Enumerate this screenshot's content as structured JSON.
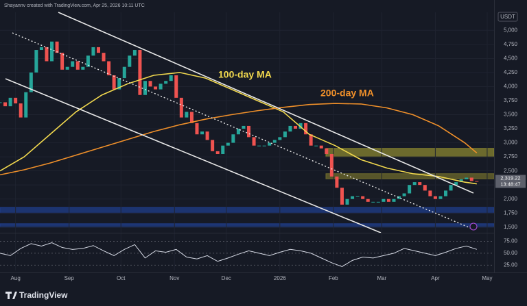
{
  "header": {
    "author_line": "Shayannv created with TradingView.com, Apr 25, 2026 10:11 UTC",
    "currency": "USDT"
  },
  "footer": {
    "brand": "TradingView"
  },
  "chart_data": [
    {
      "type": "candlestick",
      "up_color": "#26a69a",
      "down_color": "#ef5350",
      "grid": true,
      "x": [
        -9,
        -6,
        -3,
        0,
        3,
        6,
        9,
        12,
        15,
        18,
        21,
        24,
        27,
        30,
        33,
        36,
        39,
        42,
        45,
        48,
        51,
        54,
        57,
        60,
        63,
        66,
        69,
        72,
        75,
        78,
        81,
        84,
        87,
        90,
        93,
        96,
        99,
        102,
        105,
        108,
        111,
        114,
        117,
        120,
        123,
        126,
        129,
        132,
        135,
        138,
        141,
        144,
        147,
        150,
        153,
        156,
        159,
        162,
        165,
        168,
        171,
        174,
        177,
        180,
        183,
        186,
        189,
        192,
        195,
        198,
        201,
        204,
        207,
        210,
        213,
        216,
        219,
        222,
        225,
        228,
        231,
        234,
        237,
        240,
        243,
        246,
        249,
        252,
        255,
        258,
        261,
        264,
        267
      ],
      "values": [
        3720,
        3650,
        3800,
        3700,
        3450,
        3900,
        4250,
        4650,
        4700,
        4450,
        4800,
        4600,
        4300,
        4350,
        4450,
        4300,
        4350,
        4550,
        4700,
        4600,
        4450,
        4200,
        3950,
        4150,
        4350,
        4550,
        4650,
        3850,
        4100,
        4000,
        3950,
        4050,
        4100,
        4200,
        3800,
        3450,
        3550,
        3350,
        3150,
        3200,
        3050,
        2850,
        2800,
        2950,
        3000,
        3150,
        3250,
        3300,
        3100,
        2950,
        2950,
        2950,
        3000,
        3050,
        3100,
        3200,
        3300,
        3250,
        3350,
        3150,
        2950,
        2950,
        2900,
        2800,
        2400,
        2200,
        1900,
        2000,
        2050,
        2050,
        2000,
        1950,
        1950,
        1950,
        2000,
        1950,
        2000,
        2050,
        2100,
        2250,
        2300,
        2250,
        2150,
        2050,
        2000,
        2050,
        2150,
        2250,
        2300,
        2350,
        2380,
        2320,
        2319
      ],
      "overlays": [
        {
          "label": "100-day MA",
          "color": "#f2d94e",
          "x": [
            -9,
            5,
            20,
            35,
            50,
            65,
            80,
            95,
            110,
            125,
            140,
            155,
            170,
            185,
            200,
            215,
            230,
            245,
            260,
            267
          ],
          "values": [
            2500,
            2750,
            3150,
            3550,
            3850,
            4050,
            4200,
            4250,
            4150,
            3950,
            3750,
            3550,
            3150,
            2950,
            2700,
            2550,
            2450,
            2400,
            2300,
            2270
          ]
        },
        {
          "label": "200-day MA",
          "color": "#f0902a",
          "x": [
            -9,
            5,
            20,
            35,
            50,
            65,
            80,
            95,
            110,
            125,
            140,
            155,
            170,
            185,
            200,
            215,
            230,
            245,
            260,
            267
          ],
          "values": [
            2430,
            2520,
            2640,
            2780,
            2920,
            3060,
            3200,
            3320,
            3420,
            3500,
            3570,
            3630,
            3680,
            3700,
            3690,
            3620,
            3500,
            3300,
            3000,
            2820
          ]
        }
      ],
      "zones": [
        {
          "from": 2750,
          "to": 2900,
          "color": "#8a8530"
        },
        {
          "from": 2360,
          "to": 2450,
          "color": "#6e6a2c"
        },
        {
          "from": 1750,
          "to": 1850,
          "color": "#1f3d8a"
        },
        {
          "from": 1500,
          "to": 1560,
          "color": "#1f3d8a"
        }
      ],
      "last_price": {
        "value": 2319.22,
        "label": "2,319.22"
      },
      "countdown": "13:48:47",
      "xlim": [
        -9,
        277
      ],
      "ylim": [
        1400,
        5320
      ],
      "xticks": [
        {
          "value": 0,
          "label": "Aug"
        },
        {
          "value": 31,
          "label": "Sep"
        },
        {
          "value": 61,
          "label": "Oct"
        },
        {
          "value": 92,
          "label": "Nov"
        },
        {
          "value": 122,
          "label": "Dec"
        },
        {
          "value": 153,
          "label": "2026"
        },
        {
          "value": 184,
          "label": "Feb"
        },
        {
          "value": 212,
          "label": "Mar"
        },
        {
          "value": 243,
          "label": "Apr"
        },
        {
          "value": 273,
          "label": "May"
        }
      ],
      "yticks": [
        {
          "value": 1500,
          "label": "1,500"
        },
        {
          "value": 1750,
          "label": "1,750"
        },
        {
          "value": 2000,
          "label": "2,000"
        },
        {
          "value": 2250,
          "label": "2,250"
        },
        {
          "value": 2500,
          "label": "2,500"
        },
        {
          "value": 2750,
          "label": "2,750"
        },
        {
          "value": 3000,
          "label": "3,000"
        },
        {
          "value": 3250,
          "label": "3,250"
        },
        {
          "value": 3500,
          "label": "3,500"
        },
        {
          "value": 3750,
          "label": "3,750"
        },
        {
          "value": 4000,
          "label": "4,000"
        },
        {
          "value": 4250,
          "label": "4,250"
        },
        {
          "value": 4500,
          "label": "4,500"
        },
        {
          "value": 4750,
          "label": "4,750"
        },
        {
          "value": 5000,
          "label": "5,000"
        }
      ]
    },
    {
      "type": "line",
      "color": "#d7dbe6",
      "x": [
        -9,
        -3,
        3,
        9,
        15,
        21,
        27,
        33,
        39,
        45,
        51,
        57,
        63,
        69,
        75,
        81,
        87,
        93,
        99,
        105,
        111,
        117,
        123,
        129,
        135,
        141,
        147,
        153,
        159,
        165,
        171,
        177,
        183,
        189,
        195,
        201,
        207,
        213,
        219,
        225,
        231,
        237,
        243,
        249,
        255,
        261,
        267
      ],
      "values": [
        50,
        45,
        60,
        70,
        65,
        72,
        62,
        58,
        60,
        66,
        55,
        45,
        58,
        68,
        40,
        55,
        52,
        58,
        42,
        38,
        45,
        33,
        40,
        48,
        55,
        50,
        45,
        52,
        58,
        55,
        50,
        40,
        30,
        22,
        35,
        42,
        40,
        45,
        50,
        60,
        55,
        50,
        45,
        52,
        60,
        65,
        58
      ],
      "xlim": [
        -9,
        277
      ],
      "ylim": [
        14,
        90
      ],
      "yticks": [
        {
          "value": 25,
          "label": "25.00"
        },
        {
          "value": 50,
          "label": "50.00"
        },
        {
          "value": 75,
          "label": "75.00"
        }
      ]
    }
  ]
}
